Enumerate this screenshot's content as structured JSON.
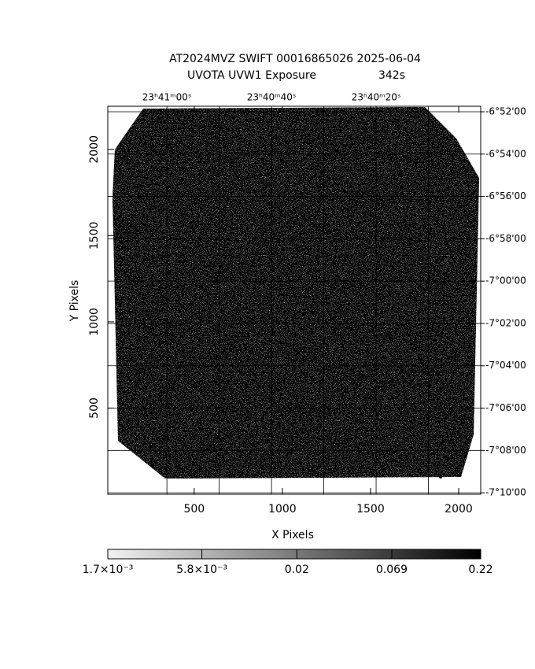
{
  "chart_data": {
    "type": "image",
    "title": "AT2024MVZ SWIFT 00016865026 2025-06-04",
    "subtitle": "UVOTA UVW1 Exposure",
    "exposure": "342s",
    "xlabel": "X Pixels",
    "ylabel": "Y Pixels",
    "xlim": [
      10,
      2125
    ],
    "xticks": [
      500,
      1000,
      1500,
      2000
    ],
    "ylim": [
      0,
      2250
    ],
    "yticks": [
      500,
      1000,
      1500,
      2000
    ],
    "x2lim": [
      85271.3,
      85200
    ],
    "x2ticks": [
      {
        "value": 85260,
        "label": "23ʰ41ᵐ00ˢ"
      },
      {
        "value": 85240,
        "label": "23ʰ40ᵐ40ˢ"
      },
      {
        "value": 85220,
        "label": "23ʰ40ᵐ20ˢ"
      }
    ],
    "x2grid": [
      85250,
      85230,
      85210
    ],
    "y2lim": [
      -411.74,
      -430.07
    ],
    "y2ticks": [
      {
        "value": -412,
        "label": "-6°52'00"
      },
      {
        "value": -414,
        "label": "-6°54'00"
      },
      {
        "value": -416,
        "label": "-6°56'00"
      },
      {
        "value": -418,
        "label": "-6°58'00"
      },
      {
        "value": -420,
        "label": "-7°00'00"
      },
      {
        "value": -422,
        "label": "-7°02'00"
      },
      {
        "value": -424,
        "label": "-7°04'00"
      },
      {
        "value": -426,
        "label": "-7°06'00"
      },
      {
        "value": -428,
        "label": "-7°08'00"
      },
      {
        "value": -430,
        "label": "-7°10'00"
      }
    ],
    "grid": true,
    "colorbar": {
      "scale": "log",
      "clim": [
        0.0017,
        0.22
      ],
      "ticks": [
        {
          "value": 0.0017,
          "label": "1.7×10⁻³"
        },
        {
          "value": 0.0058,
          "label": "5.8×10⁻³"
        },
        0.02,
        0.069,
        0.22
      ]
    }
  }
}
